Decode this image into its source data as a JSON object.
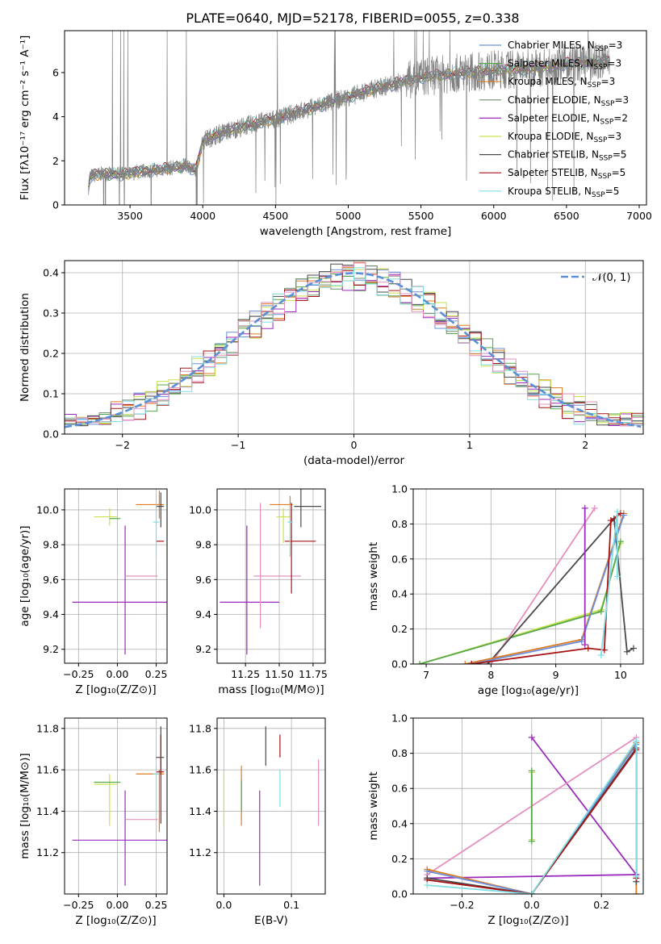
{
  "colors": {
    "Chabrier MILES": "#6b8fdc",
    "Salpeter MILES": "#57a84a",
    "Kroupa MILES": "#e07a1f",
    "Chabrier ELODIE": "#6f8f6f",
    "Salpeter ELODIE": "#9a2bbb",
    "Kroupa ELODIE": "#c7e24a",
    "Chabrier STELIB": "#4a4a4a",
    "Salpeter STELIB": "#a81414",
    "Kroupa STELIB": "#80dde6",
    "pink": "#e58fc0",
    "gauss": "#5b8fd6",
    "spectrum": "#808080"
  },
  "chart_data": [
    {
      "id": "spectrum",
      "type": "line",
      "title": "PLATE=0640, MJD=52178, FIBERID=0055, z=0.338",
      "xlabel": "wavelength [Angstrom, rest frame]",
      "ylabel": "Flux [fλ10⁻¹⁷ erg cm⁻² s⁻¹ A⁻¹]",
      "xlim": [
        3050,
        7050
      ],
      "ylim": [
        0,
        7.9
      ],
      "xticks": [
        3500,
        4000,
        4500,
        5000,
        5500,
        6000,
        6500,
        7000
      ],
      "yticks": [
        0,
        2,
        4,
        6
      ],
      "trend_x": [
        3215,
        3225,
        3300,
        3500,
        3550,
        3700,
        3800,
        3900,
        3950,
        4000,
        4100,
        4300,
        4500,
        4800,
        5000,
        5200,
        5500,
        5800,
        6000,
        6300,
        6500,
        6800
      ],
      "trend_y": [
        0.8,
        1.3,
        1.4,
        1.4,
        1.5,
        1.6,
        1.7,
        1.8,
        1.5,
        2.9,
        3.2,
        3.6,
        3.9,
        4.5,
        4.9,
        5.3,
        5.8,
        6.0,
        6.1,
        6.2,
        6.4,
        6.5
      ],
      "legend": [
        {
          "name": "Chabrier MILES, N",
          "sub": "SSP",
          "tail": "=3"
        },
        {
          "name": "Salpeter MILES, N",
          "sub": "SSP",
          "tail": "=3"
        },
        {
          "name": "Kroupa MILES, N",
          "sub": "SSP",
          "tail": "=3"
        },
        {
          "name": "Chabrier ELODIE, N",
          "sub": "SSP",
          "tail": "=3"
        },
        {
          "name": "Salpeter ELODIE, N",
          "sub": "SSP",
          "tail": "=2"
        },
        {
          "name": "Kroupa ELODIE, N",
          "sub": "SSP",
          "tail": "=3"
        },
        {
          "name": "Chabrier STELIB, N",
          "sub": "SSP",
          "tail": "=5"
        },
        {
          "name": "Salpeter STELIB, N",
          "sub": "SSP",
          "tail": "=5"
        },
        {
          "name": "Kroupa STELIB, N",
          "sub": "SSP",
          "tail": "=5"
        }
      ],
      "legend_placement": "upper right"
    },
    {
      "id": "residuals",
      "type": "histogram",
      "xlabel": "(data-model)/error",
      "ylabel": "Normed distribution",
      "xlim": [
        -2.5,
        2.5
      ],
      "ylim": [
        0,
        0.43
      ],
      "xticks": [
        -2,
        -1,
        0,
        1,
        2
      ],
      "yticks": [
        0.0,
        0.1,
        0.2,
        0.3,
        0.4
      ],
      "grid": true,
      "bin_width": 0.1,
      "gaussian": {
        "mu": 0,
        "sigma": 1,
        "label": "𝒩(0, 1)"
      },
      "legend_placement": "upper right"
    },
    {
      "id": "age-vs-Z",
      "type": "scatter",
      "xlabel": "Z [log₁₀(Z/Z⊙)]",
      "ylabel": "age  [log₁₀(age/yr)]",
      "xlim": [
        -0.34,
        0.32
      ],
      "ylim": [
        9.12,
        10.12
      ],
      "xticks": [
        -0.25,
        0.0,
        0.25
      ],
      "yticks": [
        9.2,
        9.4,
        9.6,
        9.8,
        10.0
      ],
      "points": [
        {
          "c": "Salpeter ELODIE",
          "x": 0.05,
          "y": 9.47,
          "xerr": [
            0.34,
            0.27
          ],
          "yerr": [
            0.3,
            0.44
          ]
        },
        {
          "c": "pink",
          "x": 0.08,
          "y": 9.62,
          "xerr": [
            0.03,
            0.18
          ],
          "yerr": [
            0,
            0
          ]
        },
        {
          "c": "Kroupa ELODIE",
          "x": -0.05,
          "y": 9.96,
          "xerr": [
            0.1,
            0.05
          ],
          "yerr": [
            0.05,
            0.05
          ]
        },
        {
          "c": "Salpeter MILES",
          "x": 0.0,
          "y": 9.95,
          "xerr": [
            0.05,
            0.02
          ],
          "yerr": [
            0,
            0
          ]
        },
        {
          "c": "Kroupa MILES",
          "x": 0.27,
          "y": 10.03,
          "xerr": [
            0.15,
            0.03
          ],
          "yerr": [
            0.08,
            0.08
          ]
        },
        {
          "c": "Chabrier STELIB",
          "x": 0.28,
          "y": 10.02,
          "xerr": [
            0.03,
            0.02
          ],
          "yerr": [
            0.12,
            0.08
          ]
        },
        {
          "c": "Salpeter STELIB",
          "x": 0.28,
          "y": 9.82,
          "xerr": [
            0.03,
            0.02
          ],
          "yerr": [
            0,
            0
          ]
        },
        {
          "c": "Kroupa STELIB",
          "x": 0.25,
          "y": 9.93,
          "xerr": [
            0.02,
            0.02
          ],
          "yerr": [
            0.2,
            0.1
          ]
        }
      ]
    },
    {
      "id": "age-vs-mass",
      "type": "scatter",
      "xlabel": "mass [log₁₀(M/M⊙)]",
      "ylabel": "",
      "xlim": [
        11.04,
        11.84
      ],
      "ylim": [
        9.12,
        10.12
      ],
      "xticks": [
        11.25,
        11.5,
        11.75
      ],
      "xticklabels": [
        "11.25",
        "11.50",
        "11.75"
      ],
      "yticks": [
        9.2,
        9.4,
        9.6,
        9.8,
        10.0
      ],
      "points": [
        {
          "c": "Salpeter ELODIE",
          "x": 11.26,
          "y": 9.47,
          "xerr": [
            0.2,
            0.24
          ],
          "yerr": [
            0.3,
            0.44
          ]
        },
        {
          "c": "pink",
          "x": 11.36,
          "y": 9.62,
          "xerr": [
            0.05,
            0.3
          ],
          "yerr": [
            0.3,
            0.42
          ]
        },
        {
          "c": "Kroupa ELODIE",
          "x": 11.53,
          "y": 9.96,
          "xerr": [
            0.05,
            0.05
          ],
          "yerr": [
            0.15,
            0.05
          ]
        },
        {
          "c": "Kroupa MILES",
          "x": 11.58,
          "y": 10.03,
          "xerr": [
            0.15,
            0.02
          ],
          "yerr": [
            0.08,
            0.05
          ]
        },
        {
          "c": "Chabrier STELIB",
          "x": 11.66,
          "y": 10.02,
          "xerr": [
            0.05,
            0.15
          ],
          "yerr": [
            0.12,
            0.1
          ]
        },
        {
          "c": "Salpeter STELIB",
          "x": 11.59,
          "y": 9.82,
          "xerr": [
            0.05,
            0.18
          ],
          "yerr": [
            0.3,
            0.22
          ]
        },
        {
          "c": "Kroupa STELIB",
          "x": 11.58,
          "y": 9.93,
          "xerr": [
            0.02,
            0.02
          ],
          "yerr": [
            0.2,
            0.1
          ]
        }
      ]
    },
    {
      "id": "weight-vs-age",
      "type": "line",
      "xlabel": "age  [log₁₀(age/yr)]",
      "ylabel": "mass weight",
      "xlim": [
        6.8,
        10.35
      ],
      "ylim": [
        0,
        1.0
      ],
      "xticks": [
        7,
        8,
        9,
        10
      ],
      "yticks": [
        0.0,
        0.2,
        0.4,
        0.6,
        0.8,
        1.0
      ],
      "grid": true,
      "series": [
        {
          "c": "Kroupa ELODIE",
          "x": [
            6.9,
            9.7,
            10.0
          ],
          "y": [
            0.0,
            0.31,
            0.69
          ]
        },
        {
          "c": "Salpeter MILES",
          "x": [
            6.9,
            9.7,
            10.0
          ],
          "y": [
            0.0,
            0.3,
            0.7
          ]
        },
        {
          "c": "pink",
          "x": [
            8.0,
            9.6
          ],
          "y": [
            0.0,
            0.89
          ]
        },
        {
          "c": "Chabrier STELIB",
          "x": [
            7.95,
            9.9,
            10.1,
            10.2
          ],
          "y": [
            0.0,
            0.83,
            0.07,
            0.09
          ]
        },
        {
          "c": "Kroupa MILES",
          "x": [
            7.6,
            9.4,
            10.05
          ],
          "y": [
            0.0,
            0.14,
            0.86
          ]
        },
        {
          "c": "Chabrier MILES",
          "x": [
            7.7,
            9.4,
            10.05
          ],
          "y": [
            0.0,
            0.13,
            0.85
          ]
        },
        {
          "c": "Salpeter STELIB",
          "x": [
            7.7,
            9.5,
            9.75,
            9.85,
            10.0
          ],
          "y": [
            0.0,
            0.09,
            0.08,
            0.82,
            0.86
          ]
        },
        {
          "c": "Salpeter ELODIE",
          "x": [
            9.45,
            9.45
          ],
          "y": [
            0.11,
            0.89
          ]
        },
        {
          "c": "Kroupa STELIB",
          "x": [
            9.7,
            9.95,
            9.95
          ],
          "y": [
            0.05,
            0.87,
            0.5
          ]
        }
      ]
    },
    {
      "id": "mass-vs-Z",
      "type": "scatter",
      "xlabel": "Z [log₁₀(Z/Z⊙)]",
      "ylabel": "mass [log₁₀(M/M⊙)]",
      "xlim": [
        -0.34,
        0.32
      ],
      "ylim": [
        11.0,
        11.85
      ],
      "xticks": [
        -0.25,
        0.0,
        0.25
      ],
      "yticks": [
        11.2,
        11.4,
        11.6,
        11.8
      ],
      "points": [
        {
          "c": "Salpeter ELODIE",
          "x": 0.05,
          "y": 11.26,
          "xerr": [
            0.34,
            0.27
          ],
          "yerr": [
            0.22,
            0.24
          ]
        },
        {
          "c": "pink",
          "x": 0.08,
          "y": 11.36,
          "xerr": [
            0.03,
            0.18
          ],
          "yerr": [
            0,
            0
          ]
        },
        {
          "c": "Kroupa ELODIE",
          "x": -0.05,
          "y": 11.53,
          "xerr": [
            0.1,
            0.05
          ],
          "yerr": [
            0.2,
            0.05
          ]
        },
        {
          "c": "Salpeter MILES",
          "x": 0.0,
          "y": 11.54,
          "xerr": [
            0.15,
            0.02
          ],
          "yerr": [
            0,
            0
          ]
        },
        {
          "c": "Kroupa MILES",
          "x": 0.27,
          "y": 11.58,
          "xerr": [
            0.15,
            0.03
          ],
          "yerr": [
            0.28,
            0.02
          ]
        },
        {
          "c": "Chabrier STELIB",
          "x": 0.28,
          "y": 11.66,
          "xerr": [
            0.03,
            0.02
          ],
          "yerr": [
            0.08,
            0.15
          ]
        },
        {
          "c": "Salpeter STELIB",
          "x": 0.28,
          "y": 11.59,
          "xerr": [
            0.03,
            0.02
          ],
          "yerr": [
            0.25,
            0.18
          ]
        },
        {
          "c": "Kroupa STELIB",
          "x": 0.25,
          "y": 11.58,
          "xerr": [
            0.02,
            0.02
          ],
          "yerr": [
            0.2,
            0.04
          ]
        }
      ]
    },
    {
      "id": "mass-vs-EBV",
      "type": "scatter",
      "xlabel": "E(B-V)",
      "ylabel": "",
      "xlim": [
        -0.01,
        0.15
      ],
      "ylim": [
        11.0,
        11.85
      ],
      "xticks": [
        0.0,
        0.1
      ],
      "xticklabels": [
        "0.0",
        "0.1"
      ],
      "yticks": [
        11.2,
        11.4,
        11.6,
        11.8
      ],
      "bars": [
        {
          "c": "Kroupa ELODIE",
          "x": 0.0,
          "ymin": 11.32,
          "ymax": 11.59
        },
        {
          "c": "Kroupa MILES",
          "x": 0.026,
          "ymin": 11.33,
          "ymax": 11.62
        },
        {
          "c": "Salpeter MILES",
          "x": 0.026,
          "ymin": 11.4,
          "ymax": 11.55
        },
        {
          "c": "Salpeter ELODIE",
          "x": 0.053,
          "ymin": 11.04,
          "ymax": 11.5
        },
        {
          "c": "Chabrier STELIB",
          "x": 0.062,
          "ymin": 11.62,
          "ymax": 11.81
        },
        {
          "c": "Salpeter STELIB",
          "x": 0.083,
          "ymin": 11.66,
          "ymax": 11.77
        },
        {
          "c": "Kroupa STELIB",
          "x": 0.083,
          "ymin": 11.42,
          "ymax": 11.6
        },
        {
          "c": "pink",
          "x": 0.14,
          "ymin": 11.33,
          "ymax": 11.65
        }
      ]
    },
    {
      "id": "weight-vs-Z",
      "type": "line",
      "xlabel": "Z [log₁₀(Z/Z⊙)]",
      "ylabel": "mass weight",
      "xlim": [
        -0.34,
        0.32
      ],
      "ylim": [
        0,
        1.0
      ],
      "xticks": [
        -0.2,
        0.0,
        0.2
      ],
      "xticklabels": [
        "−0.2",
        "0.0",
        "0.2"
      ],
      "yticks": [
        0.0,
        0.2,
        0.4,
        0.6,
        0.8,
        1.0
      ],
      "grid": true,
      "series": [
        {
          "c": "Salpeter ELODIE",
          "x": [
            0.0,
            0.3
          ],
          "y": [
            0.89,
            0.11
          ]
        },
        {
          "c": "Salpeter ELODIE",
          "x": [
            -0.3,
            0.3
          ],
          "y": [
            0.09,
            0.11
          ]
        },
        {
          "c": "pink",
          "x": [
            -0.3,
            0.3
          ],
          "y": [
            0.11,
            0.89
          ]
        },
        {
          "c": "Kroupa MILES",
          "x": [
            -0.3,
            0.0,
            0.3,
            0.3
          ],
          "y": [
            0.14,
            0.0,
            0.86,
            0.0
          ]
        },
        {
          "c": "Chabrier MILES",
          "x": [
            -0.3,
            0.0,
            0.3
          ],
          "y": [
            0.13,
            0.0,
            0.85
          ]
        },
        {
          "c": "Chabrier STELIB",
          "x": [
            -0.3,
            0.0,
            0.3,
            0.3
          ],
          "y": [
            0.09,
            0.0,
            0.83,
            0.07
          ]
        },
        {
          "c": "Salpeter STELIB",
          "x": [
            -0.3,
            0.0,
            0.3,
            0.3
          ],
          "y": [
            0.08,
            0.0,
            0.82,
            0.09
          ]
        },
        {
          "c": "Kroupa STELIB",
          "x": [
            -0.3,
            0.0,
            0.3,
            0.3
          ],
          "y": [
            0.05,
            0.0,
            0.87,
            0.1
          ]
        },
        {
          "c": "Kroupa ELODIE",
          "x": [
            0.0,
            0.0
          ],
          "y": [
            0.31,
            0.69
          ]
        },
        {
          "c": "Salpeter MILES",
          "x": [
            0.0,
            0.0
          ],
          "y": [
            0.3,
            0.7
          ]
        }
      ]
    }
  ]
}
